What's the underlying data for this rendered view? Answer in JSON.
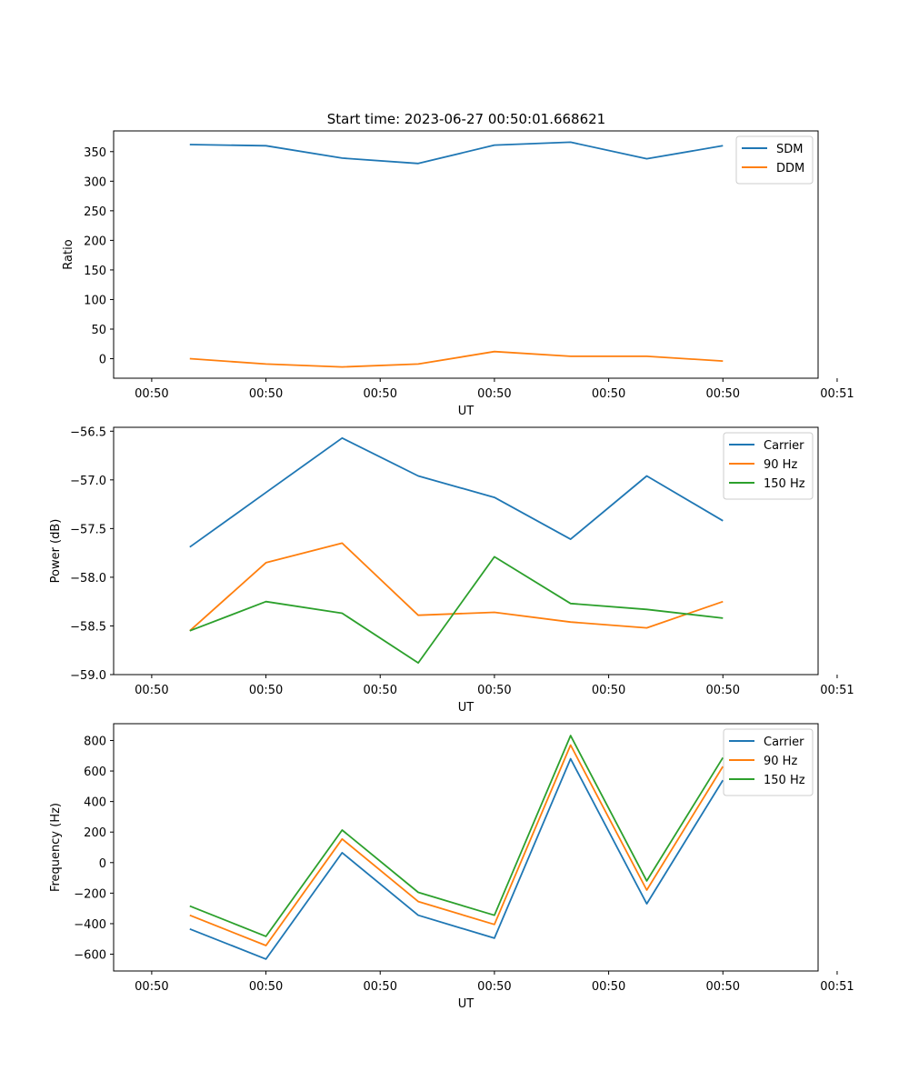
{
  "figure": {
    "title": "Start time: 2023-06-27 00:50:01.668621"
  },
  "colors": {
    "blue": "#1f77b4",
    "orange": "#ff7f0e",
    "green": "#2ca02c"
  },
  "chart_data": [
    {
      "type": "line",
      "title": "Start time: 2023-06-27 00:50:01.668621",
      "xlabel": "UT",
      "ylabel": "Ratio",
      "x": [
        1,
        2,
        3,
        4,
        5,
        6,
        7,
        8
      ],
      "xtick_labels": [
        "00:50",
        "00:50",
        "00:50",
        "00:50",
        "00:50",
        "00:50",
        "00:51"
      ],
      "xlim": [
        0,
        9.25
      ],
      "ylim": [
        -33,
        385
      ],
      "yticks": [
        0,
        50,
        100,
        150,
        200,
        250,
        300,
        350
      ],
      "legend": "top-right",
      "grid": false,
      "series": [
        {
          "name": "SDM",
          "color": "#1f77b4",
          "values": [
            362,
            360,
            339,
            330,
            361,
            366,
            338,
            360
          ]
        },
        {
          "name": "DDM",
          "color": "#ff7f0e",
          "values": [
            0,
            -9,
            -14,
            -9,
            12,
            4,
            4,
            -4
          ]
        }
      ]
    },
    {
      "type": "line",
      "xlabel": "UT",
      "ylabel": "Power (dB)",
      "x": [
        1,
        2,
        3,
        4,
        5,
        6,
        7,
        8
      ],
      "xtick_labels": [
        "00:50",
        "00:50",
        "00:50",
        "00:50",
        "00:50",
        "00:50",
        "00:51"
      ],
      "xlim": [
        0,
        9.25
      ],
      "ylim": [
        -59.0,
        -56.46
      ],
      "yticks": [
        -59.0,
        -58.5,
        -58.0,
        -57.5,
        -57.0,
        -56.5
      ],
      "ytick_labels": [
        "−59.0",
        "−58.5",
        "−58.0",
        "−57.5",
        "−57.0",
        "−56.5"
      ],
      "legend": "top-right",
      "grid": false,
      "series": [
        {
          "name": "Carrier",
          "color": "#1f77b4",
          "values": [
            -57.69,
            -57.13,
            -56.57,
            -56.96,
            -57.18,
            -57.61,
            -56.96,
            -57.42
          ]
        },
        {
          "name": "90 Hz",
          "color": "#ff7f0e",
          "values": [
            -58.55,
            -57.85,
            -57.65,
            -58.39,
            -58.36,
            -58.46,
            -58.52,
            -58.25
          ]
        },
        {
          "name": "150 Hz",
          "color": "#2ca02c",
          "values": [
            -58.55,
            -58.25,
            -58.37,
            -58.88,
            -57.79,
            -58.27,
            -58.33,
            -58.42
          ]
        }
      ]
    },
    {
      "type": "line",
      "xlabel": "UT",
      "ylabel": "Frequency (Hz)",
      "x": [
        1,
        2,
        3,
        4,
        5,
        6,
        7,
        8
      ],
      "xtick_labels": [
        "00:50",
        "00:50",
        "00:50",
        "00:50",
        "00:50",
        "00:50",
        "00:51"
      ],
      "xlim": [
        0,
        9.25
      ],
      "ylim": [
        -710,
        910
      ],
      "yticks": [
        -600,
        -400,
        -200,
        0,
        200,
        400,
        600,
        800
      ],
      "ytick_labels": [
        "−600",
        "−400",
        "−200",
        "0",
        "200",
        "400",
        "600",
        "800"
      ],
      "legend": "top-right",
      "grid": false,
      "series": [
        {
          "name": "Carrier",
          "color": "#1f77b4",
          "values": [
            -435,
            -632,
            65,
            -345,
            -495,
            680,
            -270,
            540
          ]
        },
        {
          "name": "90 Hz",
          "color": "#ff7f0e",
          "values": [
            -345,
            -543,
            155,
            -255,
            -405,
            770,
            -180,
            630
          ]
        },
        {
          "name": "150 Hz",
          "color": "#2ca02c",
          "values": [
            -285,
            -483,
            213,
            -195,
            -345,
            832,
            -120,
            688
          ]
        }
      ]
    }
  ]
}
